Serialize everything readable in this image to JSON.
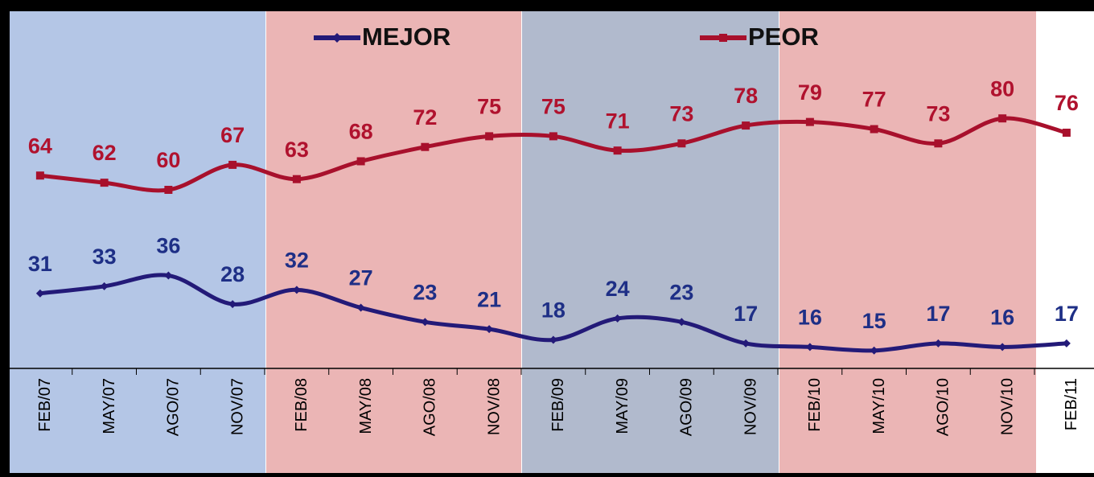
{
  "chart_data": {
    "type": "line",
    "categories": [
      "FEB/07",
      "MAY/07",
      "AGO/07",
      "NOV/07",
      "FEB/08",
      "MAY/08",
      "AGO/08",
      "NOV/08",
      "FEB/09",
      "MAY/09",
      "AGO/09",
      "NOV/09",
      "FEB/10",
      "MAY/10",
      "AGO/10",
      "NOV/10",
      "FEB/11"
    ],
    "series": [
      {
        "name": "MEJOR",
        "color": "#231a78",
        "values": [
          31,
          33,
          36,
          28,
          32,
          27,
          23,
          21,
          18,
          24,
          23,
          17,
          16,
          15,
          17,
          16,
          17
        ]
      },
      {
        "name": "PEOR",
        "color": "#a8102c",
        "values": [
          64,
          62,
          60,
          67,
          63,
          68,
          72,
          75,
          75,
          71,
          73,
          78,
          79,
          77,
          73,
          80,
          76
        ]
      }
    ],
    "ylim": [
      10,
      110
    ]
  }
}
